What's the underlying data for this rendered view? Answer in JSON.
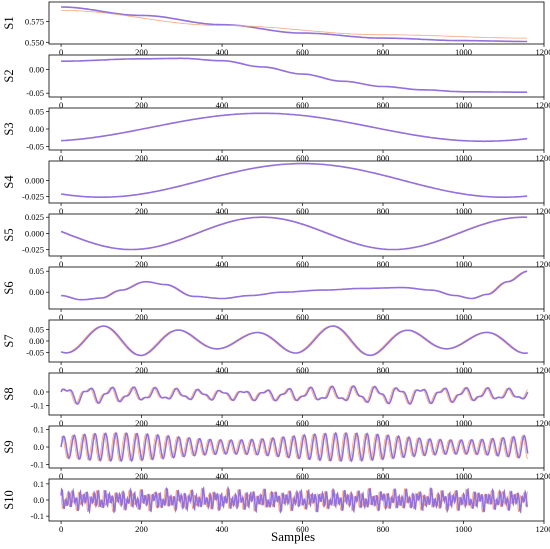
{
  "figure": {
    "x_axis_title": "Samples",
    "colors": {
      "series_a": "#9370db",
      "series_b": "#f4a582",
      "series_c": "#6fb0e8"
    }
  },
  "chart_data": [
    {
      "type": "line",
      "panel_label": "S1",
      "xlim": [
        -30,
        1200
      ],
      "ylim": [
        0.548,
        0.598
      ],
      "x_ticks": [
        0,
        200,
        400,
        600,
        800,
        1000,
        1200
      ],
      "y_ticks": [
        0.55,
        0.575
      ],
      "y_tick_labels": [
        "0.550",
        "0.575"
      ],
      "series": [
        {
          "kind": "poly",
          "points": [
            [
              0,
              0.592
            ],
            [
              200,
              0.582
            ],
            [
              400,
              0.571
            ],
            [
              600,
              0.561
            ],
            [
              800,
              0.555
            ],
            [
              1000,
              0.552
            ],
            [
              1160,
              0.551
            ]
          ]
        },
        {
          "kind": "poly",
          "points": [
            [
              0,
              0.588
            ],
            [
              400,
              0.57
            ],
            [
              800,
              0.559
            ],
            [
              1160,
              0.555
            ]
          ]
        }
      ]
    },
    {
      "type": "line",
      "panel_label": "S2",
      "xlim": [
        -30,
        1200
      ],
      "ylim": [
        -0.058,
        0.03
      ],
      "x_ticks": [
        0,
        200,
        400,
        600,
        800,
        1000,
        1200
      ],
      "y_ticks": [
        0.0,
        -0.05
      ],
      "y_tick_labels": [
        "0.00",
        "-0.05"
      ],
      "series": [
        {
          "kind": "poly",
          "points": [
            [
              0,
              0.017
            ],
            [
              200,
              0.022
            ],
            [
              300,
              0.023
            ],
            [
              400,
              0.018
            ],
            [
              500,
              0.005
            ],
            [
              600,
              -0.01
            ],
            [
              700,
              -0.025
            ],
            [
              800,
              -0.036
            ],
            [
              900,
              -0.043
            ],
            [
              1000,
              -0.047
            ],
            [
              1160,
              -0.048
            ]
          ]
        }
      ]
    },
    {
      "type": "line",
      "panel_label": "S3",
      "xlim": [
        -30,
        1200
      ],
      "ylim": [
        -0.06,
        0.06
      ],
      "x_ticks": [
        0,
        200,
        400,
        600,
        800,
        1000,
        1200
      ],
      "y_ticks": [
        0.05,
        0.0,
        -0.05
      ],
      "y_tick_labels": [
        "0.05",
        "0.00",
        "-0.05"
      ],
      "series": [
        {
          "kind": "cos",
          "amp": 0.04,
          "period": 1100,
          "peak": 500,
          "offset": 0.005,
          "x0": 0,
          "x1": 1160
        }
      ]
    },
    {
      "type": "line",
      "panel_label": "S4",
      "xlim": [
        -30,
        1200
      ],
      "ylim": [
        -0.035,
        0.03
      ],
      "x_ticks": [
        0,
        200,
        400,
        600,
        800,
        1000,
        1200
      ],
      "y_ticks": [
        0.0,
        -0.025
      ],
      "y_tick_labels": [
        "0.000",
        "-0.025"
      ],
      "series": [
        {
          "kind": "cos",
          "amp": 0.026,
          "period": 1000,
          "peak": 600,
          "offset": 0.0,
          "x0": 0,
          "x1": 1160
        }
      ]
    },
    {
      "type": "line",
      "panel_label": "S5",
      "xlim": [
        -30,
        1200
      ],
      "ylim": [
        -0.035,
        0.03
      ],
      "x_ticks": [
        0,
        200,
        400,
        600,
        800,
        1000,
        1200
      ],
      "y_ticks": [
        0.025,
        0.0,
        -0.025
      ],
      "y_tick_labels": [
        "0.025",
        "0.000",
        "-0.025"
      ],
      "series": [
        {
          "kind": "cos",
          "amp": 0.025,
          "period": 650,
          "peak": 500,
          "offset": 0.0,
          "x0": 0,
          "x1": 1160
        }
      ]
    },
    {
      "type": "line",
      "panel_label": "S6",
      "xlim": [
        -30,
        1200
      ],
      "ylim": [
        -0.04,
        0.06
      ],
      "x_ticks": [
        0,
        200,
        400,
        600,
        800,
        1000,
        1200
      ],
      "y_ticks": [
        0.05,
        0.0
      ],
      "y_tick_labels": [
        "0.05",
        "0.00"
      ],
      "series": [
        {
          "kind": "poly",
          "points": [
            [
              0,
              -0.008
            ],
            [
              50,
              -0.018
            ],
            [
              100,
              -0.014
            ],
            [
              150,
              0.005
            ],
            [
              210,
              0.025
            ],
            [
              260,
              0.018
            ],
            [
              330,
              -0.01
            ],
            [
              400,
              -0.015
            ],
            [
              470,
              -0.008
            ],
            [
              550,
              0.0
            ],
            [
              650,
              0.005
            ],
            [
              750,
              0.009
            ],
            [
              850,
              0.011
            ],
            [
              920,
              0.005
            ],
            [
              980,
              -0.008
            ],
            [
              1020,
              -0.015
            ],
            [
              1060,
              -0.005
            ],
            [
              1110,
              0.025
            ],
            [
              1160,
              0.05
            ]
          ]
        }
      ]
    },
    {
      "type": "line",
      "panel_label": "S7",
      "xlim": [
        -30,
        1200
      ],
      "ylim": [
        -0.09,
        0.09
      ],
      "x_ticks": [
        0,
        200,
        400,
        600,
        800,
        1000,
        1200
      ],
      "y_ticks": [
        0.05,
        0.0,
        -0.05
      ],
      "y_tick_labels": [
        "0.05",
        "0.00",
        "-0.05"
      ],
      "series": [
        {
          "kind": "sin",
          "amp": 0.065,
          "period": 190,
          "phase": -1.9,
          "offset": 0.0,
          "x0": 0,
          "x1": 1160
        }
      ]
    },
    {
      "type": "line",
      "panel_label": "S8",
      "xlim": [
        -30,
        1200
      ],
      "ylim": [
        -0.17,
        0.14
      ],
      "x_ticks": [
        0,
        200,
        400,
        600,
        800,
        1000,
        1200
      ],
      "y_ticks": [
        0.0,
        -0.1
      ],
      "y_tick_labels": [
        "0.0",
        "-0.1"
      ],
      "series": [
        {
          "kind": "osc",
          "amp": 0.07,
          "period": 55,
          "offset": -0.02,
          "x0": 0,
          "x1": 1160
        }
      ]
    },
    {
      "type": "line",
      "panel_label": "S9",
      "xlim": [
        -30,
        1200
      ],
      "ylim": [
        -0.12,
        0.12
      ],
      "x_ticks": [
        0,
        200,
        400,
        600,
        800,
        1000,
        1200
      ],
      "y_ticks": [
        0.1,
        0.0,
        -0.1
      ],
      "y_tick_labels": [
        "0.1",
        "0.0",
        "-0.1"
      ],
      "series": [
        {
          "kind": "sin",
          "amp": 0.08,
          "period": 26,
          "phase": 0.0,
          "offset": 0.0,
          "x0": 0,
          "x1": 1160
        }
      ]
    },
    {
      "type": "line",
      "panel_label": "S10",
      "xlim": [
        -30,
        1200
      ],
      "ylim": [
        -0.13,
        0.13
      ],
      "x_ticks": [
        0,
        200,
        400,
        600,
        800,
        1000,
        1200
      ],
      "y_ticks": [
        0.1,
        0.0,
        -0.1
      ],
      "y_tick_labels": [
        "0.1",
        "0.0",
        "-0.1"
      ],
      "series": [
        {
          "kind": "noise",
          "amp": 0.07,
          "period": 9,
          "offset": 0.0,
          "x0": 0,
          "x1": 1160
        }
      ]
    }
  ]
}
